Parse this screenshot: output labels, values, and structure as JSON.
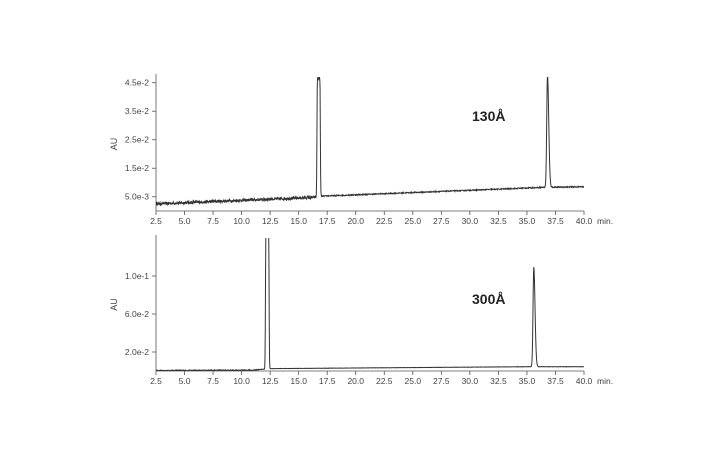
{
  "chart_data": [
    {
      "type": "line",
      "xlabel": "",
      "ylabel": "AU",
      "x_unit": "min.",
      "xlim": [
        2.5,
        40.0
      ],
      "ylim": [
        0.0,
        0.047
      ],
      "x_ticks": [
        2.5,
        5.0,
        7.5,
        10.0,
        12.5,
        15.0,
        17.5,
        20.0,
        22.5,
        25.0,
        27.5,
        30.0,
        32.5,
        35.0,
        37.5,
        40.0
      ],
      "x_tick_labels": [
        "2.5",
        "5.0",
        "7.5",
        "10.0",
        "12.5",
        "15.0",
        "17.5",
        "20.0",
        "22.5",
        "25.0",
        "27.5",
        "30.0",
        "32.5",
        "35.0",
        "37.5",
        "40.0"
      ],
      "y_ticks": [
        0.005,
        0.015,
        0.025,
        0.035,
        0.045
      ],
      "y_tick_labels": [
        "5.0e-3",
        "1.5e-2",
        "2.5e-2",
        "3.5e-2",
        "4.5e-2"
      ],
      "annotation": "130Å",
      "grid": false,
      "baseline": [
        [
          2.5,
          0.0025
        ],
        [
          16.4,
          0.0048
        ],
        [
          17.0,
          0.0052
        ],
        [
          36.5,
          0.0083
        ],
        [
          40.0,
          0.0085
        ]
      ],
      "noise_amplitude": 0.0005,
      "noise_end": 17.0,
      "peaks": [
        {
          "x": 16.75,
          "height": 0.0415,
          "width": 0.2,
          "shape": "flat-top"
        },
        {
          "x": 36.8,
          "height": 0.0395,
          "width": 0.12,
          "shape": "gaussian"
        }
      ]
    },
    {
      "type": "line",
      "xlabel": "",
      "ylabel": "AU",
      "x_unit": "min.",
      "xlim": [
        2.5,
        40.0
      ],
      "ylim": [
        0.0,
        0.14
      ],
      "x_ticks": [
        2.5,
        5.0,
        7.5,
        10.0,
        12.5,
        15.0,
        17.5,
        20.0,
        22.5,
        25.0,
        27.5,
        30.0,
        32.5,
        35.0,
        37.5,
        40.0
      ],
      "x_tick_labels": [
        "2.5",
        "5.0",
        "7.5",
        "10.0",
        "12.5",
        "15.0",
        "17.5",
        "20.0",
        "22.5",
        "25.0",
        "27.5",
        "30.0",
        "32.5",
        "35.0",
        "37.5",
        "40.0"
      ],
      "y_ticks": [
        0.02,
        0.06,
        0.1
      ],
      "y_tick_labels": [
        "2.0e-2",
        "6.0e-2",
        "1.0e-1"
      ],
      "annotation": "300Å",
      "grid": false,
      "baseline": [
        [
          2.5,
          0.0005
        ],
        [
          11.0,
          0.001
        ],
        [
          12.5,
          0.0025
        ],
        [
          35.0,
          0.0045
        ],
        [
          40.0,
          0.0045
        ]
      ],
      "noise_amplitude": 0.0004,
      "noise_end": 11.5,
      "peaks": [
        {
          "x": 12.25,
          "height": 0.145,
          "width": 0.22,
          "shape": "flat-top"
        },
        {
          "x": 35.6,
          "height": 0.105,
          "width": 0.12,
          "shape": "gaussian"
        }
      ]
    }
  ]
}
